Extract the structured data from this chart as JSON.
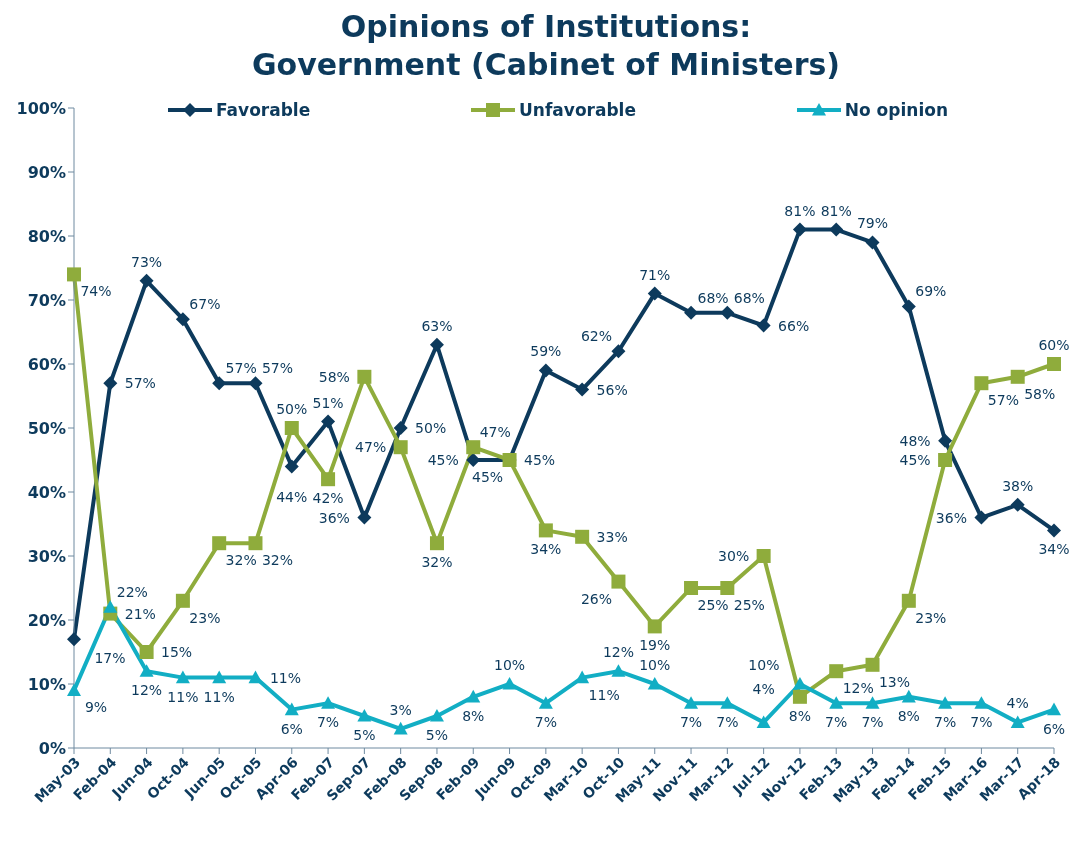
{
  "chart_data": {
    "type": "line",
    "title": "Opinions of Institutions:\nGovernment (Cabinet of Ministers)",
    "categories": [
      "May-03",
      "Feb-04",
      "Jun-04",
      "Oct-04",
      "Jun-05",
      "Oct-05",
      "Apr-06",
      "Feb-07",
      "Sep-07",
      "Feb-08",
      "Sep-08",
      "Feb-09",
      "Jun-09",
      "Oct-09",
      "Mar-10",
      "Oct-10",
      "May-11",
      "Nov-11",
      "Mar-12",
      "Jul-12",
      "Nov-12",
      "Feb-13",
      "May-13",
      "Feb-14",
      "Feb-15",
      "Mar-16",
      "Mar-17",
      "Apr-18"
    ],
    "series": [
      {
        "name": "Favorable",
        "color": "#0d3a5c",
        "marker": "diamond",
        "values": [
          17,
          57,
          73,
          67,
          57,
          57,
          44,
          51,
          36,
          50,
          63,
          45,
          45,
          59,
          56,
          62,
          71,
          68,
          68,
          66,
          81,
          81,
          79,
          69,
          48,
          36,
          38,
          34
        ],
        "value_labels": [
          "17%",
          "57%",
          "73%",
          "67%",
          "57%",
          "57%",
          "44%",
          "51%",
          "36%",
          "50%",
          "63%",
          "45%",
          "45%",
          "59%",
          "56%",
          "62%",
          "71%",
          "68%",
          "68%",
          "66%",
          "81%",
          "81%",
          "79%",
          "69%",
          "48%",
          "36%",
          "38%",
          "34%"
        ]
      },
      {
        "name": "Unfavorable",
        "color": "#8fac3c",
        "marker": "square",
        "values": [
          74,
          21,
          15,
          23,
          32,
          32,
          50,
          42,
          58,
          47,
          32,
          47,
          45,
          34,
          33,
          26,
          19,
          25,
          25,
          30,
          8,
          12,
          13,
          23,
          45,
          57,
          58,
          60
        ],
        "value_labels": [
          "74%",
          "21%",
          "15%",
          "23%",
          "32%",
          "32%",
          "50%",
          "42%",
          "58%",
          "47%",
          "32%",
          "47%",
          "45%",
          "34%",
          "33%",
          "26%",
          "19%",
          "25%",
          "25%",
          "30%",
          "8%",
          "12%",
          "13%",
          "23%",
          "45%",
          "57%",
          "58%",
          "60%"
        ]
      },
      {
        "name": "No opinion",
        "color": "#12aec4",
        "marker": "triangle",
        "values": [
          9,
          22,
          12,
          11,
          11,
          11,
          6,
          7,
          5,
          3,
          5,
          8,
          10,
          7,
          11,
          12,
          10,
          7,
          7,
          4,
          10,
          7,
          7,
          8,
          7,
          7,
          4,
          6
        ],
        "value_labels": [
          "9%",
          "22%",
          "12%",
          "11%",
          "11%",
          "11%",
          "6%",
          "7%",
          "5%",
          "3%",
          "5%",
          "8%",
          "10%",
          "7%",
          "11%",
          "12%",
          "10%",
          "7%",
          "7%",
          "4%",
          "10%",
          "7%",
          "7%",
          "8%",
          "7%",
          "7%",
          "4%",
          "6%"
        ]
      }
    ],
    "ylim": [
      0,
      100
    ],
    "yticks": [
      {
        "value": 0,
        "label": "0%"
      },
      {
        "value": 10,
        "label": "10%"
      },
      {
        "value": 20,
        "label": "20%"
      },
      {
        "value": 30,
        "label": "30%"
      },
      {
        "value": 40,
        "label": "40%"
      },
      {
        "value": 50,
        "label": "50%"
      },
      {
        "value": 60,
        "label": "60%"
      },
      {
        "value": 70,
        "label": "70%"
      },
      {
        "value": 80,
        "label": "80%"
      },
      {
        "value": 90,
        "label": "90%"
      },
      {
        "value": 100,
        "label": "100%"
      }
    ],
    "legend": "top"
  }
}
